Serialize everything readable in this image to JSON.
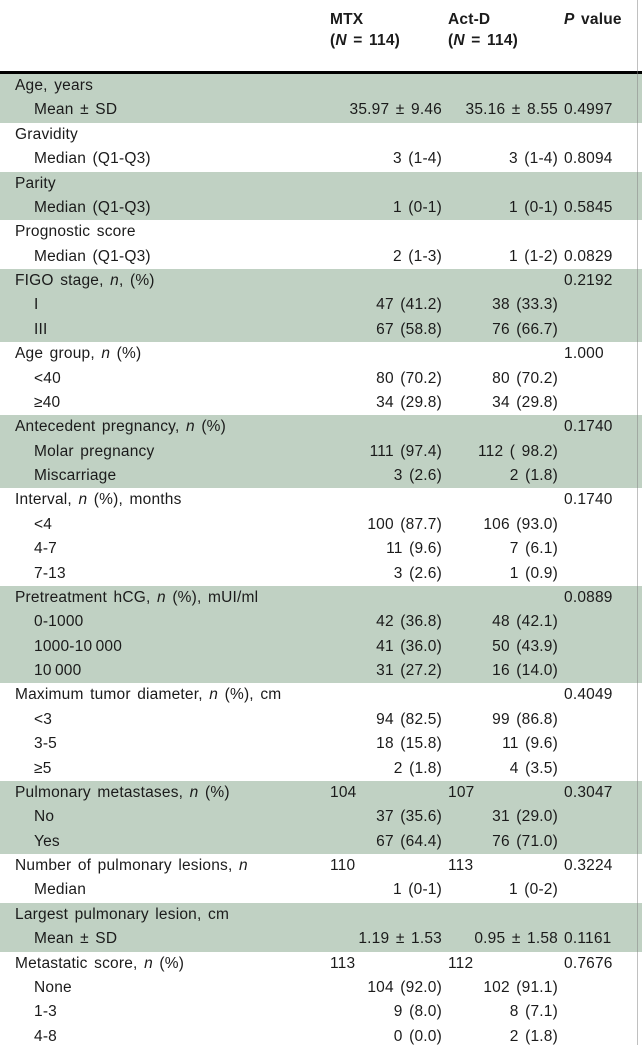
{
  "table": {
    "colors": {
      "band_green": "#c0d1c3",
      "rule_black": "#000000",
      "text": "#1b1b1b"
    },
    "columns": {
      "mtx_line1": "MTX",
      "mtx_line2_html": "(<i>N</i> = 114)",
      "actd_line1": "Act-D",
      "actd_line2_html": "(<i>N</i> = 114)",
      "p_html": "<i>P</i> value"
    },
    "rows": [
      {
        "label_html": "Age, years",
        "shade": true
      },
      {
        "label_html": "Mean ± SD",
        "indent": true,
        "shade": true,
        "mtx": "35.97 ± 9.46",
        "actd": "35.16 ± 8.55",
        "p": "0.4997"
      },
      {
        "label_html": "Gravidity"
      },
      {
        "label_html": "Median (Q1-Q3)",
        "indent": true,
        "mtx": "3 (1-4)",
        "actd": "3 (1-4)",
        "p": "0.8094"
      },
      {
        "label_html": "Parity",
        "shade": true
      },
      {
        "label_html": "Median (Q1-Q3)",
        "indent": true,
        "shade": true,
        "mtx": "1 (0-1)",
        "actd": "1 (0-1)",
        "p": "0.5845"
      },
      {
        "label_html": "Prognostic score"
      },
      {
        "label_html": "Median (Q1-Q3)",
        "indent": true,
        "mtx": "2 (1-3)",
        "actd": "1 (1-2)",
        "p": "0.0829"
      },
      {
        "label_html": "FIGO stage, <i>n</i>, (%)",
        "shade": true,
        "p": "0.2192"
      },
      {
        "label_html": "I",
        "indent": true,
        "shade": true,
        "mtx": "47 (41.2)",
        "actd": "38 (33.3)"
      },
      {
        "label_html": "III",
        "indent": true,
        "shade": true,
        "mtx": "67 (58.8)",
        "actd": "76 (66.7)"
      },
      {
        "label_html": "Age group, <i>n</i> (%)",
        "p": "1.000"
      },
      {
        "label_html": "&lt;40",
        "indent": true,
        "mtx": "80 (70.2)",
        "actd": "80 (70.2)"
      },
      {
        "label_html": "≥40",
        "indent": true,
        "mtx": "34 (29.8)",
        "actd": "34 (29.8)"
      },
      {
        "label_html": "Antecedent pregnancy, <i>n</i> (%)",
        "shade": true,
        "p": "0.1740"
      },
      {
        "label_html": "Molar pregnancy",
        "indent": true,
        "shade": true,
        "mtx": "111 (97.4)",
        "actd": "112 ( 98.2)"
      },
      {
        "label_html": "Miscarriage",
        "indent": true,
        "shade": true,
        "mtx": "3 (2.6)",
        "actd": "2 (1.8)"
      },
      {
        "label_html": "Interval, <i>n</i> (%), months",
        "p": "0.1740"
      },
      {
        "label_html": "&lt;4",
        "indent": true,
        "mtx": "100 (87.7)",
        "actd": "106 (93.0)"
      },
      {
        "label_html": "4-7",
        "indent": true,
        "mtx": "11 (9.6)",
        "actd": "7 (6.1)"
      },
      {
        "label_html": "7-13",
        "indent": true,
        "mtx": "3 (2.6)",
        "actd": "1 (0.9)"
      },
      {
        "label_html": "Pretreatment hCG, <i>n</i> (%), mUI/ml",
        "shade": true,
        "p": "0.0889"
      },
      {
        "label_html": "0-1000",
        "indent": true,
        "shade": true,
        "mtx": "42 (36.8)",
        "actd": "48 (42.1)"
      },
      {
        "label_html": "1000-10 000",
        "indent": true,
        "shade": true,
        "mtx": "41 (36.0)",
        "actd": "50 (43.9)"
      },
      {
        "label_html": "10 000",
        "indent": true,
        "shade": true,
        "mtx": "31 (27.2)",
        "actd": "16 (14.0)"
      },
      {
        "label_html": "Maximum tumor diameter, <i>n</i> (%), cm",
        "p": "0.4049"
      },
      {
        "label_html": "&lt;3",
        "indent": true,
        "mtx": "94 (82.5)",
        "actd": "99 (86.8)"
      },
      {
        "label_html": "3-5",
        "indent": true,
        "mtx": "18 (15.8)",
        "actd": "11 (9.6)"
      },
      {
        "label_html": "≥5",
        "indent": true,
        "mtx": "2 (1.8)",
        "actd": "4 (3.5)"
      },
      {
        "label_html": "Pulmonary metastases, <i>n</i> (%)",
        "shade": true,
        "mtx": "104",
        "actd": "107",
        "p": "0.3047",
        "count": true
      },
      {
        "label_html": "No",
        "indent": true,
        "shade": true,
        "mtx": "37 (35.6)",
        "actd": "31 (29.0)"
      },
      {
        "label_html": "Yes",
        "indent": true,
        "shade": true,
        "mtx": "67 (64.4)",
        "actd": "76 (71.0)"
      },
      {
        "label_html": "Number of pulmonary lesions, <i>n</i>",
        "mtx": "110",
        "actd": "113",
        "p": "0.3224",
        "count": true
      },
      {
        "label_html": "Median",
        "indent": true,
        "mtx": "1 (0-1)",
        "actd": "1 (0-2)"
      },
      {
        "label_html": "Largest pulmonary lesion, cm",
        "shade": true
      },
      {
        "label_html": "Mean ± SD",
        "indent": true,
        "shade": true,
        "mtx": "1.19 ± 1.53",
        "actd": "0.95 ± 1.58",
        "p": "0.1161"
      },
      {
        "label_html": "Metastatic score, <i>n</i> (%)",
        "mtx": "113",
        "actd": "112",
        "p": "0.7676",
        "count": true
      },
      {
        "label_html": "None",
        "indent": true,
        "mtx": "104 (92.0)",
        "actd": "102 (91.1)"
      },
      {
        "label_html": "1-3",
        "indent": true,
        "mtx": "9 (8.0)",
        "actd": "8 (7.1)"
      },
      {
        "label_html": "4-8",
        "indent": true,
        "mtx": "0 (0.0)",
        "actd": "2 (1.8)"
      }
    ]
  }
}
